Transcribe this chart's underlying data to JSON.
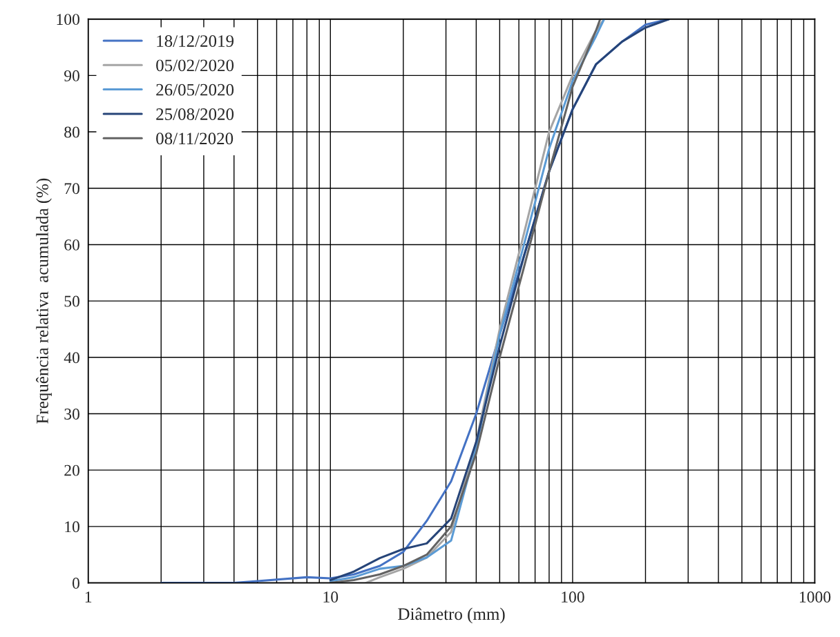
{
  "chart_data": {
    "type": "line",
    "xlabel": "Diâmetro (mm)",
    "ylabel": "Frequência relativa  acumulada (%)",
    "log": "x",
    "xlim": [
      1,
      1000
    ],
    "xticks": [
      1,
      10,
      100,
      1000
    ],
    "ylim": [
      0,
      100
    ],
    "yticks": [
      0,
      10,
      20,
      30,
      40,
      50,
      60,
      70,
      80,
      90,
      100
    ],
    "grid": true,
    "legend": "top left",
    "marker": "none",
    "line_style": "solid",
    "series": [
      {
        "name": "18/12/2019",
        "color": "#4472c4",
        "x": [
          2,
          4,
          5,
          8,
          10,
          12.5,
          16,
          20,
          25,
          31.5,
          40,
          50,
          63,
          80,
          100,
          125,
          160,
          200,
          250
        ],
        "values": [
          0,
          0,
          0.3,
          1,
          0.8,
          1.5,
          3,
          5.5,
          11,
          18,
          30,
          44,
          58,
          73,
          84,
          92,
          96,
          99,
          100
        ]
      },
      {
        "name": "05/02/2020",
        "color": "#a5a5a5",
        "x": [
          14,
          16,
          20,
          25,
          31.5,
          40,
          50,
          63,
          80,
          100,
          125,
          135
        ],
        "values": [
          0,
          1,
          2.5,
          4.5,
          9,
          25,
          45,
          62,
          80,
          90,
          98,
          100
        ]
      },
      {
        "name": "26/05/2020",
        "color": "#5b9bd5",
        "x": [
          10,
          12.5,
          16,
          20,
          25,
          31.5,
          40,
          50,
          63,
          80,
          100,
          125,
          135
        ],
        "values": [
          0.3,
          1,
          2.5,
          3,
          4.5,
          7.5,
          24,
          44,
          60,
          77,
          89,
          97,
          100
        ]
      },
      {
        "name": "25/08/2020",
        "color": "#264478",
        "x": [
          10,
          12.5,
          16,
          20,
          25,
          31.5,
          40,
          50,
          63,
          80,
          100,
          125,
          160,
          200,
          250
        ],
        "values": [
          0.5,
          2,
          4.4,
          6,
          7,
          11.4,
          25,
          42,
          58,
          73,
          84,
          92,
          96,
          98.5,
          100
        ]
      },
      {
        "name": "08/11/2020",
        "color": "#636363",
        "x": [
          10,
          12.5,
          16,
          20,
          25,
          31.5,
          40,
          50,
          63,
          80,
          100,
          125,
          130
        ],
        "values": [
          0,
          0.5,
          1.5,
          3,
          5,
          10,
          23,
          40,
          56,
          73,
          88,
          98,
          100
        ]
      }
    ]
  }
}
